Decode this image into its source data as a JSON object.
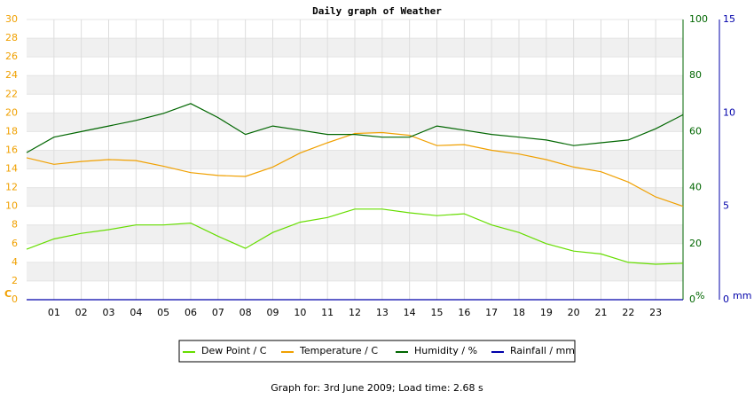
{
  "chart_data": {
    "type": "line",
    "title": "Daily graph of Weather",
    "footer": "Graph for: 3rd June 2009; Load time: 2.68 s",
    "y_label": "C",
    "y2_label": "%",
    "y3_label": "mm",
    "xlim": [
      0,
      24
    ],
    "xticks": [
      {
        "value": 1,
        "label": "01"
      },
      {
        "value": 2,
        "label": "02"
      },
      {
        "value": 3,
        "label": "03"
      },
      {
        "value": 4,
        "label": "04"
      },
      {
        "value": 5,
        "label": "05"
      },
      {
        "value": 6,
        "label": "06"
      },
      {
        "value": 7,
        "label": "07"
      },
      {
        "value": 8,
        "label": "08"
      },
      {
        "value": 9,
        "label": "09"
      },
      10,
      11,
      12,
      13,
      14,
      15,
      16,
      17,
      18,
      19,
      20,
      21,
      22,
      23
    ],
    "ylim": [
      0,
      30
    ],
    "yticks": [
      0,
      2,
      4,
      6,
      8,
      10,
      12,
      14,
      16,
      18,
      20,
      22,
      24,
      26,
      28,
      30
    ],
    "y2lim": [
      0,
      100
    ],
    "y2ticks": [
      0,
      20,
      40,
      60,
      80,
      100
    ],
    "y3lim": [
      0,
      15
    ],
    "y3ticks": [
      0,
      5,
      10,
      15
    ],
    "grid": true,
    "x": [
      0,
      1,
      2,
      3,
      4,
      5,
      6,
      7,
      8,
      9,
      10,
      11,
      12,
      13,
      14,
      15,
      16,
      17,
      18,
      19,
      20,
      21,
      22,
      23,
      24
    ],
    "series": [
      {
        "name": "Dew Point / C",
        "color": "#66dd00",
        "axis": "y",
        "values": [
          5.4,
          6.5,
          7.1,
          7.5,
          8.0,
          8.0,
          8.2,
          6.8,
          5.5,
          7.2,
          8.3,
          8.8,
          9.7,
          9.7,
          9.3,
          9.0,
          9.2,
          8.0,
          7.2,
          6.0,
          5.2,
          4.9,
          4.0,
          3.8,
          3.9
        ]
      },
      {
        "name": "Temperature / C",
        "color": "#f0a000",
        "axis": "y",
        "values": [
          15.2,
          14.5,
          14.8,
          15.0,
          14.9,
          14.3,
          13.6,
          13.3,
          13.2,
          14.2,
          15.7,
          16.8,
          17.8,
          17.9,
          17.6,
          16.5,
          16.6,
          16.0,
          15.6,
          15.0,
          14.2,
          13.7,
          12.6,
          11.0,
          10.0
        ]
      },
      {
        "name": "Humidity / %",
        "color": "#006600",
        "axis": "y2",
        "values": [
          52.5,
          58,
          60,
          62,
          64,
          66.5,
          70,
          65,
          59,
          62,
          60.5,
          59,
          59,
          58,
          58,
          62,
          60.5,
          59,
          58,
          57,
          55,
          56,
          57,
          61,
          66
        ]
      },
      {
        "name": "Rainfall / mm",
        "color": "#0000aa",
        "axis": "y3",
        "values": [
          0,
          0,
          0,
          0,
          0,
          0,
          0,
          0,
          0,
          0,
          0,
          0,
          0,
          0,
          0,
          0,
          0,
          0,
          0,
          0,
          0,
          0,
          0,
          0,
          0
        ]
      }
    ]
  }
}
